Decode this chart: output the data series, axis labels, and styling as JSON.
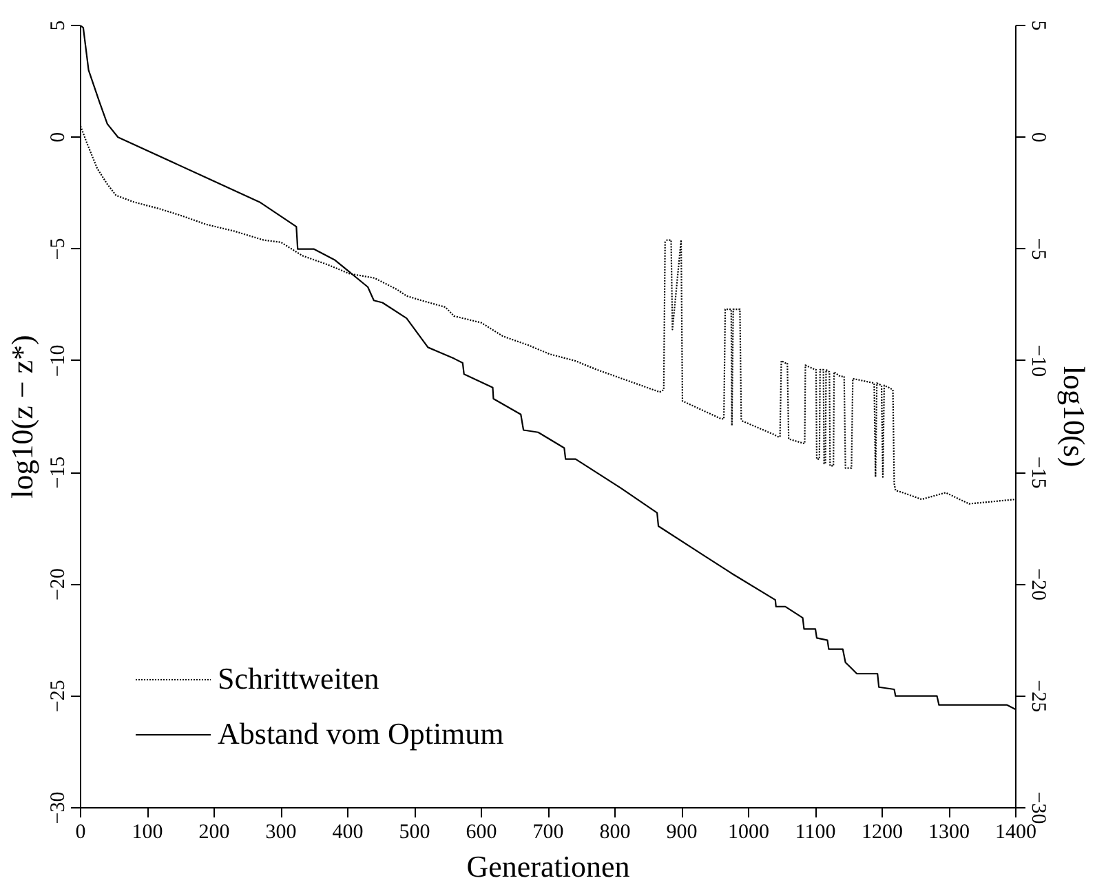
{
  "chart_data": {
    "type": "line",
    "xlabel": "Generationen",
    "ylabel": "log10(z − z*)",
    "y2label": "log10(s)",
    "xlim": [
      0,
      1400
    ],
    "xticks": [
      0,
      100,
      200,
      300,
      400,
      500,
      600,
      700,
      800,
      900,
      1000,
      1100,
      1200,
      1300,
      1400
    ],
    "ylim": [
      -30,
      5
    ],
    "yticks": [
      -30,
      -25,
      -20,
      -15,
      -10,
      -5,
      0,
      5
    ],
    "y2lim": [
      -30,
      5
    ],
    "y2ticks": [
      -30,
      -25,
      -20,
      -15,
      -10,
      -5,
      0,
      5
    ],
    "grid": false,
    "legend": "bottom left",
    "marker": "none",
    "series": [
      {
        "name": "Schrittweiten",
        "color": "#000000",
        "line_style": "dotted",
        "axis": "y2",
        "x": [
          0,
          10,
          25,
          40,
          53,
          80,
          118,
          150,
          188,
          230,
          274,
          300,
          332,
          370,
          402,
          440,
          473,
          488,
          510,
          546,
          559,
          600,
          632,
          670,
          702,
          740,
          773,
          820,
          867,
          873,
          875,
          878,
          884,
          886,
          899,
          901,
          930,
          959,
          963,
          965,
          974,
          975,
          977,
          987,
          989,
          991,
          1038,
          1044,
          1047,
          1049,
          1055,
          1058,
          1060,
          1083,
          1084,
          1085,
          1100,
          1101,
          1102,
          1106,
          1107,
          1112,
          1113,
          1115,
          1116,
          1121,
          1122,
          1127,
          1128,
          1137,
          1143,
          1145,
          1152,
          1154,
          1156,
          1188,
          1190,
          1192,
          1199,
          1201,
          1203,
          1210,
          1216,
          1218,
          1220,
          1231,
          1259,
          1295,
          1330,
          1400
        ],
        "values": [
          0.5,
          -0.3,
          -1.4,
          -2.1,
          -2.6,
          -2.9,
          -3.2,
          -3.5,
          -3.9,
          -4.2,
          -4.6,
          -4.7,
          -5.3,
          -5.7,
          -6.1,
          -6.3,
          -6.8,
          -7.1,
          -7.3,
          -7.6,
          -8.0,
          -8.3,
          -8.9,
          -9.3,
          -9.7,
          -10.0,
          -10.4,
          -10.9,
          -11.4,
          -11.3,
          -4.7,
          -4.6,
          -4.6,
          -8.6,
          -4.6,
          -11.8,
          -12.2,
          -12.6,
          -12.6,
          -7.7,
          -7.7,
          -12.9,
          -7.7,
          -7.7,
          -12.6,
          -12.7,
          -13.3,
          -13.4,
          -13.4,
          -10.0,
          -10.1,
          -10.1,
          -13.5,
          -13.7,
          -13.7,
          -10.2,
          -10.4,
          -10.4,
          -14.4,
          -14.4,
          -10.4,
          -10.4,
          -14.6,
          -14.6,
          -10.4,
          -10.5,
          -14.7,
          -14.7,
          -10.5,
          -10.7,
          -10.7,
          -14.8,
          -14.8,
          -14.8,
          -10.8,
          -11.0,
          -15.2,
          -11.0,
          -11.1,
          -15.2,
          -11.1,
          -11.2,
          -11.3,
          -15.5,
          -15.8,
          -15.9,
          -16.2,
          -15.9,
          -16.4,
          -16.2
        ]
      },
      {
        "name": "Abstand vom Optimum",
        "color": "#000000",
        "line_style": "solid",
        "x": [
          0,
          4,
          12,
          28,
          40,
          56,
          268,
          323,
          325,
          349,
          381,
          430,
          439,
          452,
          488,
          520,
          559,
          572,
          574,
          617,
          618,
          659,
          663,
          685,
          724,
          726,
          741,
          809,
          863,
          865,
          974,
          1040,
          1041,
          1055,
          1081,
          1083,
          1100,
          1102,
          1118,
          1120,
          1141,
          1145,
          1152,
          1162,
          1193,
          1195,
          1218,
          1220,
          1282,
          1285,
          1387,
          1400
        ],
        "values": [
          5.0,
          4.9,
          3.0,
          1.6,
          0.6,
          0.0,
          -2.9,
          -4.0,
          -5.0,
          -5.0,
          -5.5,
          -6.7,
          -7.3,
          -7.4,
          -8.1,
          -9.4,
          -9.9,
          -10.1,
          -10.6,
          -11.2,
          -11.7,
          -12.4,
          -13.1,
          -13.2,
          -13.9,
          -14.4,
          -14.4,
          -15.7,
          -16.8,
          -17.4,
          -19.5,
          -20.7,
          -21.0,
          -21.0,
          -21.5,
          -22.0,
          -22.0,
          -22.4,
          -22.5,
          -22.9,
          -22.9,
          -23.5,
          -23.7,
          -24.0,
          -24.0,
          -24.6,
          -24.7,
          -25.0,
          -25.0,
          -25.4,
          -25.4,
          -25.6
        ]
      }
    ]
  }
}
